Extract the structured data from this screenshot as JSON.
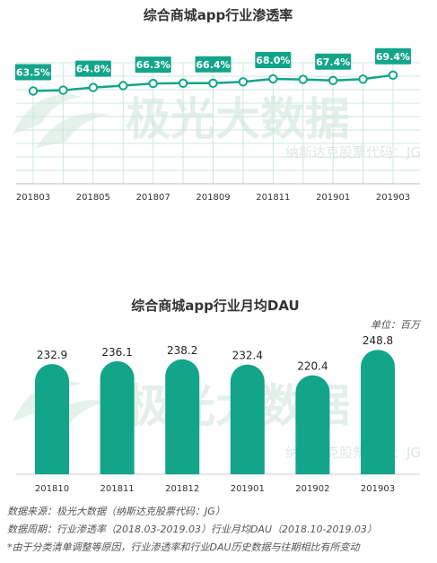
{
  "colors": {
    "accent": "#12a58a",
    "grid": "#cde8dc",
    "text": "#333333"
  },
  "watermark": {
    "brand": "极光大数据",
    "code": "纳斯达克股票代码：JG"
  },
  "chart_data": [
    {
      "type": "line",
      "title": "综合商城app行业渗透率",
      "x_labels": [
        "201803",
        "201805",
        "201807",
        "201809",
        "201811",
        "201901",
        "201903"
      ],
      "points": 13,
      "labeled_values": [
        {
          "index": 0,
          "label": "63.5%"
        },
        {
          "index": 2,
          "label": "64.8%"
        },
        {
          "index": 4,
          "label": "66.3%"
        },
        {
          "index": 6,
          "label": "66.4%"
        },
        {
          "index": 8,
          "label": "68.0%"
        },
        {
          "index": 10,
          "label": "67.4%"
        },
        {
          "index": 12,
          "label": "69.4%"
        }
      ],
      "values": [
        63.5,
        63.8,
        64.8,
        65.5,
        66.3,
        66.4,
        66.4,
        66.9,
        68.0,
        67.8,
        67.4,
        67.9,
        69.4
      ],
      "grid": true
    },
    {
      "type": "bar",
      "title": "综合商城app行业月均DAU",
      "unit": "单位：百万",
      "categories": [
        "201810",
        "201811",
        "201812",
        "201901",
        "201902",
        "201903"
      ],
      "values": [
        232.9,
        236.1,
        238.2,
        232.4,
        220.4,
        248.8
      ],
      "value_labels": [
        "232.9",
        "236.1",
        "238.2",
        "232.4",
        "220.4",
        "248.8"
      ]
    }
  ],
  "footnotes": [
    "数据来源：极光大数据（纳斯达克股票代码：JG）",
    "数据周期：行业渗透率（2018.03-2019.03）行业月均DAU（2018.10-2019.03）",
    "*由于分类清单调整等原因，行业渗透率和行业DAU历史数据与往期相比有所变动"
  ]
}
